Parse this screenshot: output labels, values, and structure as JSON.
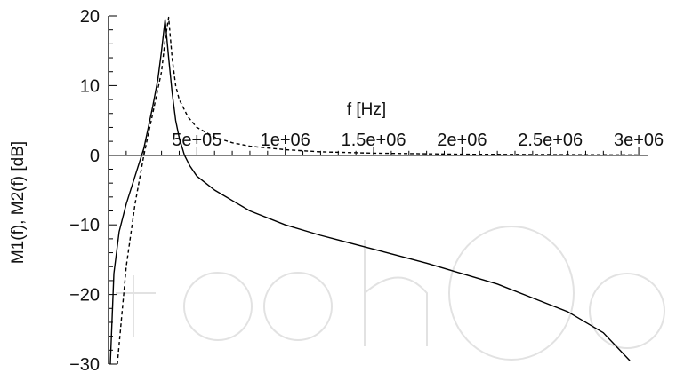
{
  "chart_data": {
    "type": "line",
    "xlabel": "f [Hz]",
    "ylabel": "M1(f), M2(f) [dB]",
    "xlim": [
      0,
      3050000
    ],
    "ylim": [
      -30,
      20
    ],
    "x_ticks": [
      {
        "value": 500000,
        "label": "5e+05"
      },
      {
        "value": 1000000,
        "label": "1e+06"
      },
      {
        "value": 1500000,
        "label": "1.5e+06"
      },
      {
        "value": 2000000,
        "label": "2e+06"
      },
      {
        "value": 2500000,
        "label": "2.5e+06"
      },
      {
        "value": 3000000,
        "label": "3e+06"
      }
    ],
    "y_ticks": [
      {
        "value": 20,
        "label": "20"
      },
      {
        "value": 10,
        "label": "10"
      },
      {
        "value": 0,
        "label": "0"
      },
      {
        "value": -10,
        "label": "−10"
      },
      {
        "value": -20,
        "label": "−20"
      },
      {
        "value": -30,
        "label": "−30"
      }
    ],
    "grid": false,
    "series": [
      {
        "style": "solid",
        "color": "#000000",
        "x": [
          10000,
          30000,
          60000,
          100000,
          150000,
          200000,
          250000,
          280000,
          300000,
          320000,
          340000,
          360000,
          380000,
          400000,
          430000,
          460000,
          500000,
          550000,
          600000,
          700000,
          800000,
          1000000,
          1200000,
          1500000,
          1800000,
          2000000,
          2200000,
          2400000,
          2600000,
          2800000,
          2950000
        ],
        "y": [
          -30,
          -17,
          -11,
          -7,
          -3,
          1,
          7,
          11,
          15,
          19.5,
          14,
          9,
          5,
          2.5,
          0,
          -1.5,
          -3,
          -4,
          -5,
          -6.5,
          -8,
          -10,
          -11.5,
          -13.5,
          -15.5,
          -17,
          -18.5,
          -20.5,
          -22.5,
          -25.5,
          -29.5
        ]
      },
      {
        "style": "dashed",
        "color": "#000000",
        "x": [
          50000,
          100000,
          150000,
          200000,
          250000,
          300000,
          320000,
          340000,
          360000,
          380000,
          400000,
          450000,
          500000,
          600000,
          700000,
          800000,
          1000000,
          1200000,
          1500000,
          2000000,
          2500000,
          3000000
        ],
        "y": [
          -30,
          -16,
          -7,
          0,
          6,
          12,
          16.5,
          19.8,
          14,
          10,
          8,
          5.5,
          4,
          2.6,
          1.8,
          1.3,
          0.8,
          0.5,
          0.3,
          0.15,
          0.1,
          0.05
        ]
      }
    ]
  }
}
